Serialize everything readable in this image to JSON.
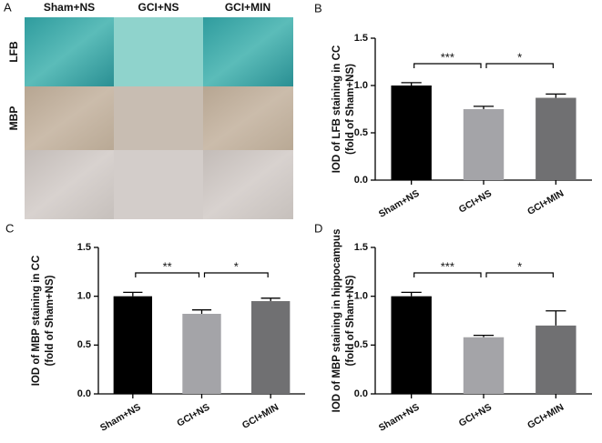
{
  "panel_a": {
    "panel_label": "A",
    "columns": [
      "Sham+NS",
      "GCI+NS",
      "GCI+MIN"
    ],
    "rows": [
      "LFB",
      "MBP"
    ]
  },
  "chart_data": [
    {
      "type": "bar",
      "panel_label": "B",
      "y_label": [
        "IOD of LFB staining in CC",
        "(fold of Sham+NS)"
      ],
      "categories": [
        "Sham+NS",
        "GCI+NS",
        "GCI+MIN"
      ],
      "values": [
        1.0,
        0.75,
        0.87
      ],
      "errors": [
        0.03,
        0.03,
        0.04
      ],
      "colors": [
        "#000000",
        "#a4a4a8",
        "#707072"
      ],
      "annotations": [
        "***",
        "*"
      ],
      "ylim": [
        0,
        1.5
      ],
      "yticks": [
        {
          "value": 0,
          "label": "0.0"
        },
        0.5,
        {
          "value": 1,
          "label": "1.0"
        },
        1.5
      ]
    },
    {
      "type": "bar",
      "panel_label": "C",
      "y_label": [
        "IOD of MBP staining in CC",
        "(fold of Sham+NS)"
      ],
      "categories": [
        "Sham+NS",
        "GCI+NS",
        "GCI+MIN"
      ],
      "values": [
        1.0,
        0.82,
        0.95
      ],
      "errors": [
        0.04,
        0.04,
        0.03
      ],
      "colors": [
        "#000000",
        "#a4a4a8",
        "#707072"
      ],
      "annotations": [
        "**",
        "*"
      ],
      "ylim": [
        0,
        1.5
      ],
      "yticks": [
        {
          "value": 0,
          "label": "0.0"
        },
        0.5,
        {
          "value": 1,
          "label": "1.0"
        },
        1.5
      ]
    },
    {
      "type": "bar",
      "panel_label": "D",
      "y_label": [
        "IOD of MBP staining in hippocampus",
        "(fold of Sham+NS)"
      ],
      "categories": [
        "Sham+NS",
        "GCI+NS",
        "GCI+MIN"
      ],
      "values": [
        1.0,
        0.58,
        0.7
      ],
      "errors": [
        0.04,
        0.02,
        0.15
      ],
      "colors": [
        "#000000",
        "#a4a4a8",
        "#707072"
      ],
      "annotations": [
        "***",
        "*"
      ],
      "ylim": [
        0,
        1.5
      ],
      "yticks": [
        {
          "value": 0,
          "label": "0.0"
        },
        0.5,
        {
          "value": 1,
          "label": "1.0"
        },
        1.5
      ]
    }
  ]
}
